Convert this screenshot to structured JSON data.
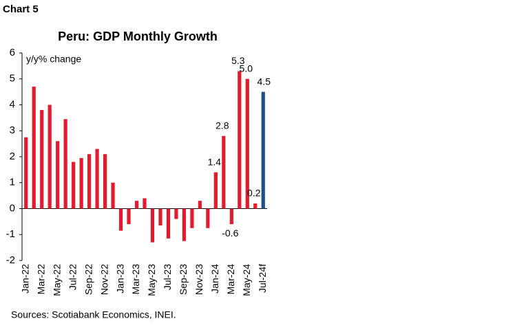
{
  "header": "Chart 5",
  "chart_data": {
    "type": "bar",
    "title": "Peru: GDP Monthly Growth",
    "annotation": "y/y% change",
    "source": "Sources: Scotiabank Economics, INEI.",
    "categories": [
      "Jan-22",
      null,
      "Mar-22",
      null,
      "May-22",
      null,
      "Jul-22",
      null,
      "Sep-22",
      null,
      "Nov-22",
      null,
      "Jan-23",
      null,
      "Mar-23",
      null,
      "May-23",
      null,
      "Jul-23",
      null,
      "Sep-23",
      null,
      "Nov-23",
      null,
      "Jan-24",
      null,
      "Mar-24",
      null,
      "May-24",
      null,
      "Jul-24f"
    ],
    "values": [
      2.75,
      4.7,
      3.8,
      4.0,
      2.6,
      3.45,
      1.8,
      1.95,
      2.1,
      2.3,
      2.1,
      1.0,
      -0.85,
      -0.6,
      0.3,
      0.4,
      -1.3,
      -0.65,
      -1.15,
      -0.4,
      -1.25,
      -0.75,
      0.3,
      -0.75,
      1.4,
      2.8,
      -0.6,
      5.3,
      5.0,
      0.2,
      4.5
    ],
    "value_labels": [
      null,
      null,
      null,
      null,
      null,
      null,
      null,
      null,
      null,
      null,
      null,
      null,
      null,
      null,
      null,
      null,
      null,
      null,
      null,
      null,
      null,
      null,
      null,
      null,
      "1.4",
      "2.8",
      "-0.6",
      "5.3",
      "5.0",
      "0.2",
      "4.5"
    ],
    "colors": [
      "#e31b2e",
      "#e31b2e",
      "#e31b2e",
      "#e31b2e",
      "#e31b2e",
      "#e31b2e",
      "#e31b2e",
      "#e31b2e",
      "#e31b2e",
      "#e31b2e",
      "#e31b2e",
      "#e31b2e",
      "#e31b2e",
      "#e31b2e",
      "#e31b2e",
      "#e31b2e",
      "#e31b2e",
      "#e31b2e",
      "#e31b2e",
      "#e31b2e",
      "#e31b2e",
      "#e31b2e",
      "#e31b2e",
      "#e31b2e",
      "#e31b2e",
      "#e31b2e",
      "#e31b2e",
      "#e31b2e",
      "#e31b2e",
      "#e31b2e",
      "#1f4e8c"
    ],
    "ylim": [
      -2,
      6
    ],
    "yticks": [
      -2,
      -1,
      0,
      1,
      2,
      3,
      4,
      5,
      6
    ]
  }
}
